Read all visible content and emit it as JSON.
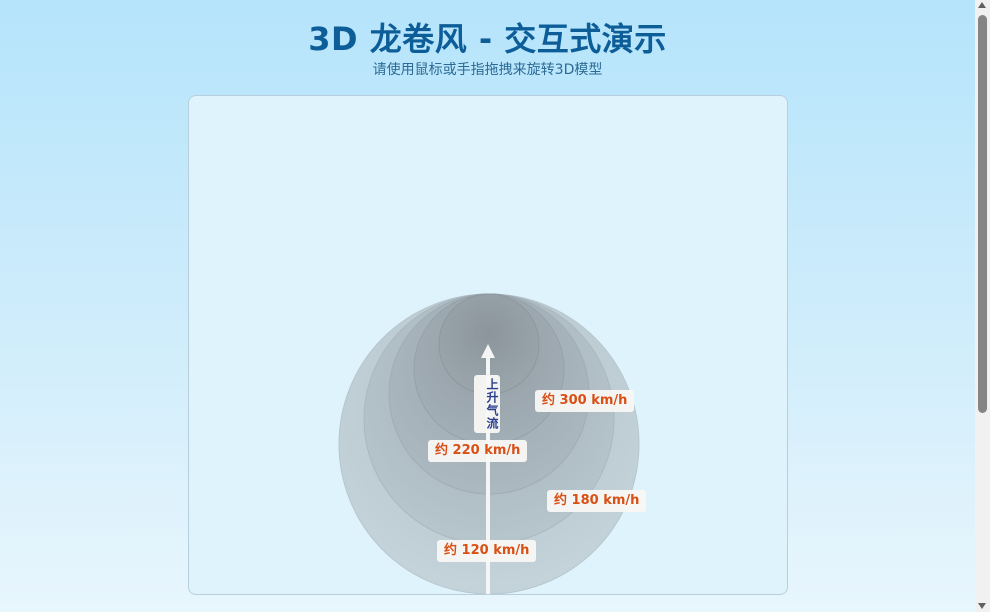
{
  "header": {
    "title": "3D 龙卷风 - 交互式演示",
    "subtitle": "请使用鼠标或手指拖拽来旋转3D模型"
  },
  "scene": {
    "updraft_label": "上升气流",
    "speed_labels": [
      {
        "id": "ring-top",
        "text": "约 300 km/h"
      },
      {
        "id": "ring-upper",
        "text": "约 220 km/h"
      },
      {
        "id": "ring-middle",
        "text": "约 180 km/h"
      },
      {
        "id": "ring-bottom",
        "text": "约 120 km/h"
      }
    ]
  },
  "colors": {
    "title": "#0d5d99",
    "speed_text": "#d94f14",
    "updraft_text": "#2b3f8f",
    "funnel": "#9aa3a9"
  },
  "icons": {
    "updraft_arrow": "arrow-up-icon",
    "scroll_up": "triangle-up-icon",
    "scroll_down": "triangle-down-icon"
  }
}
